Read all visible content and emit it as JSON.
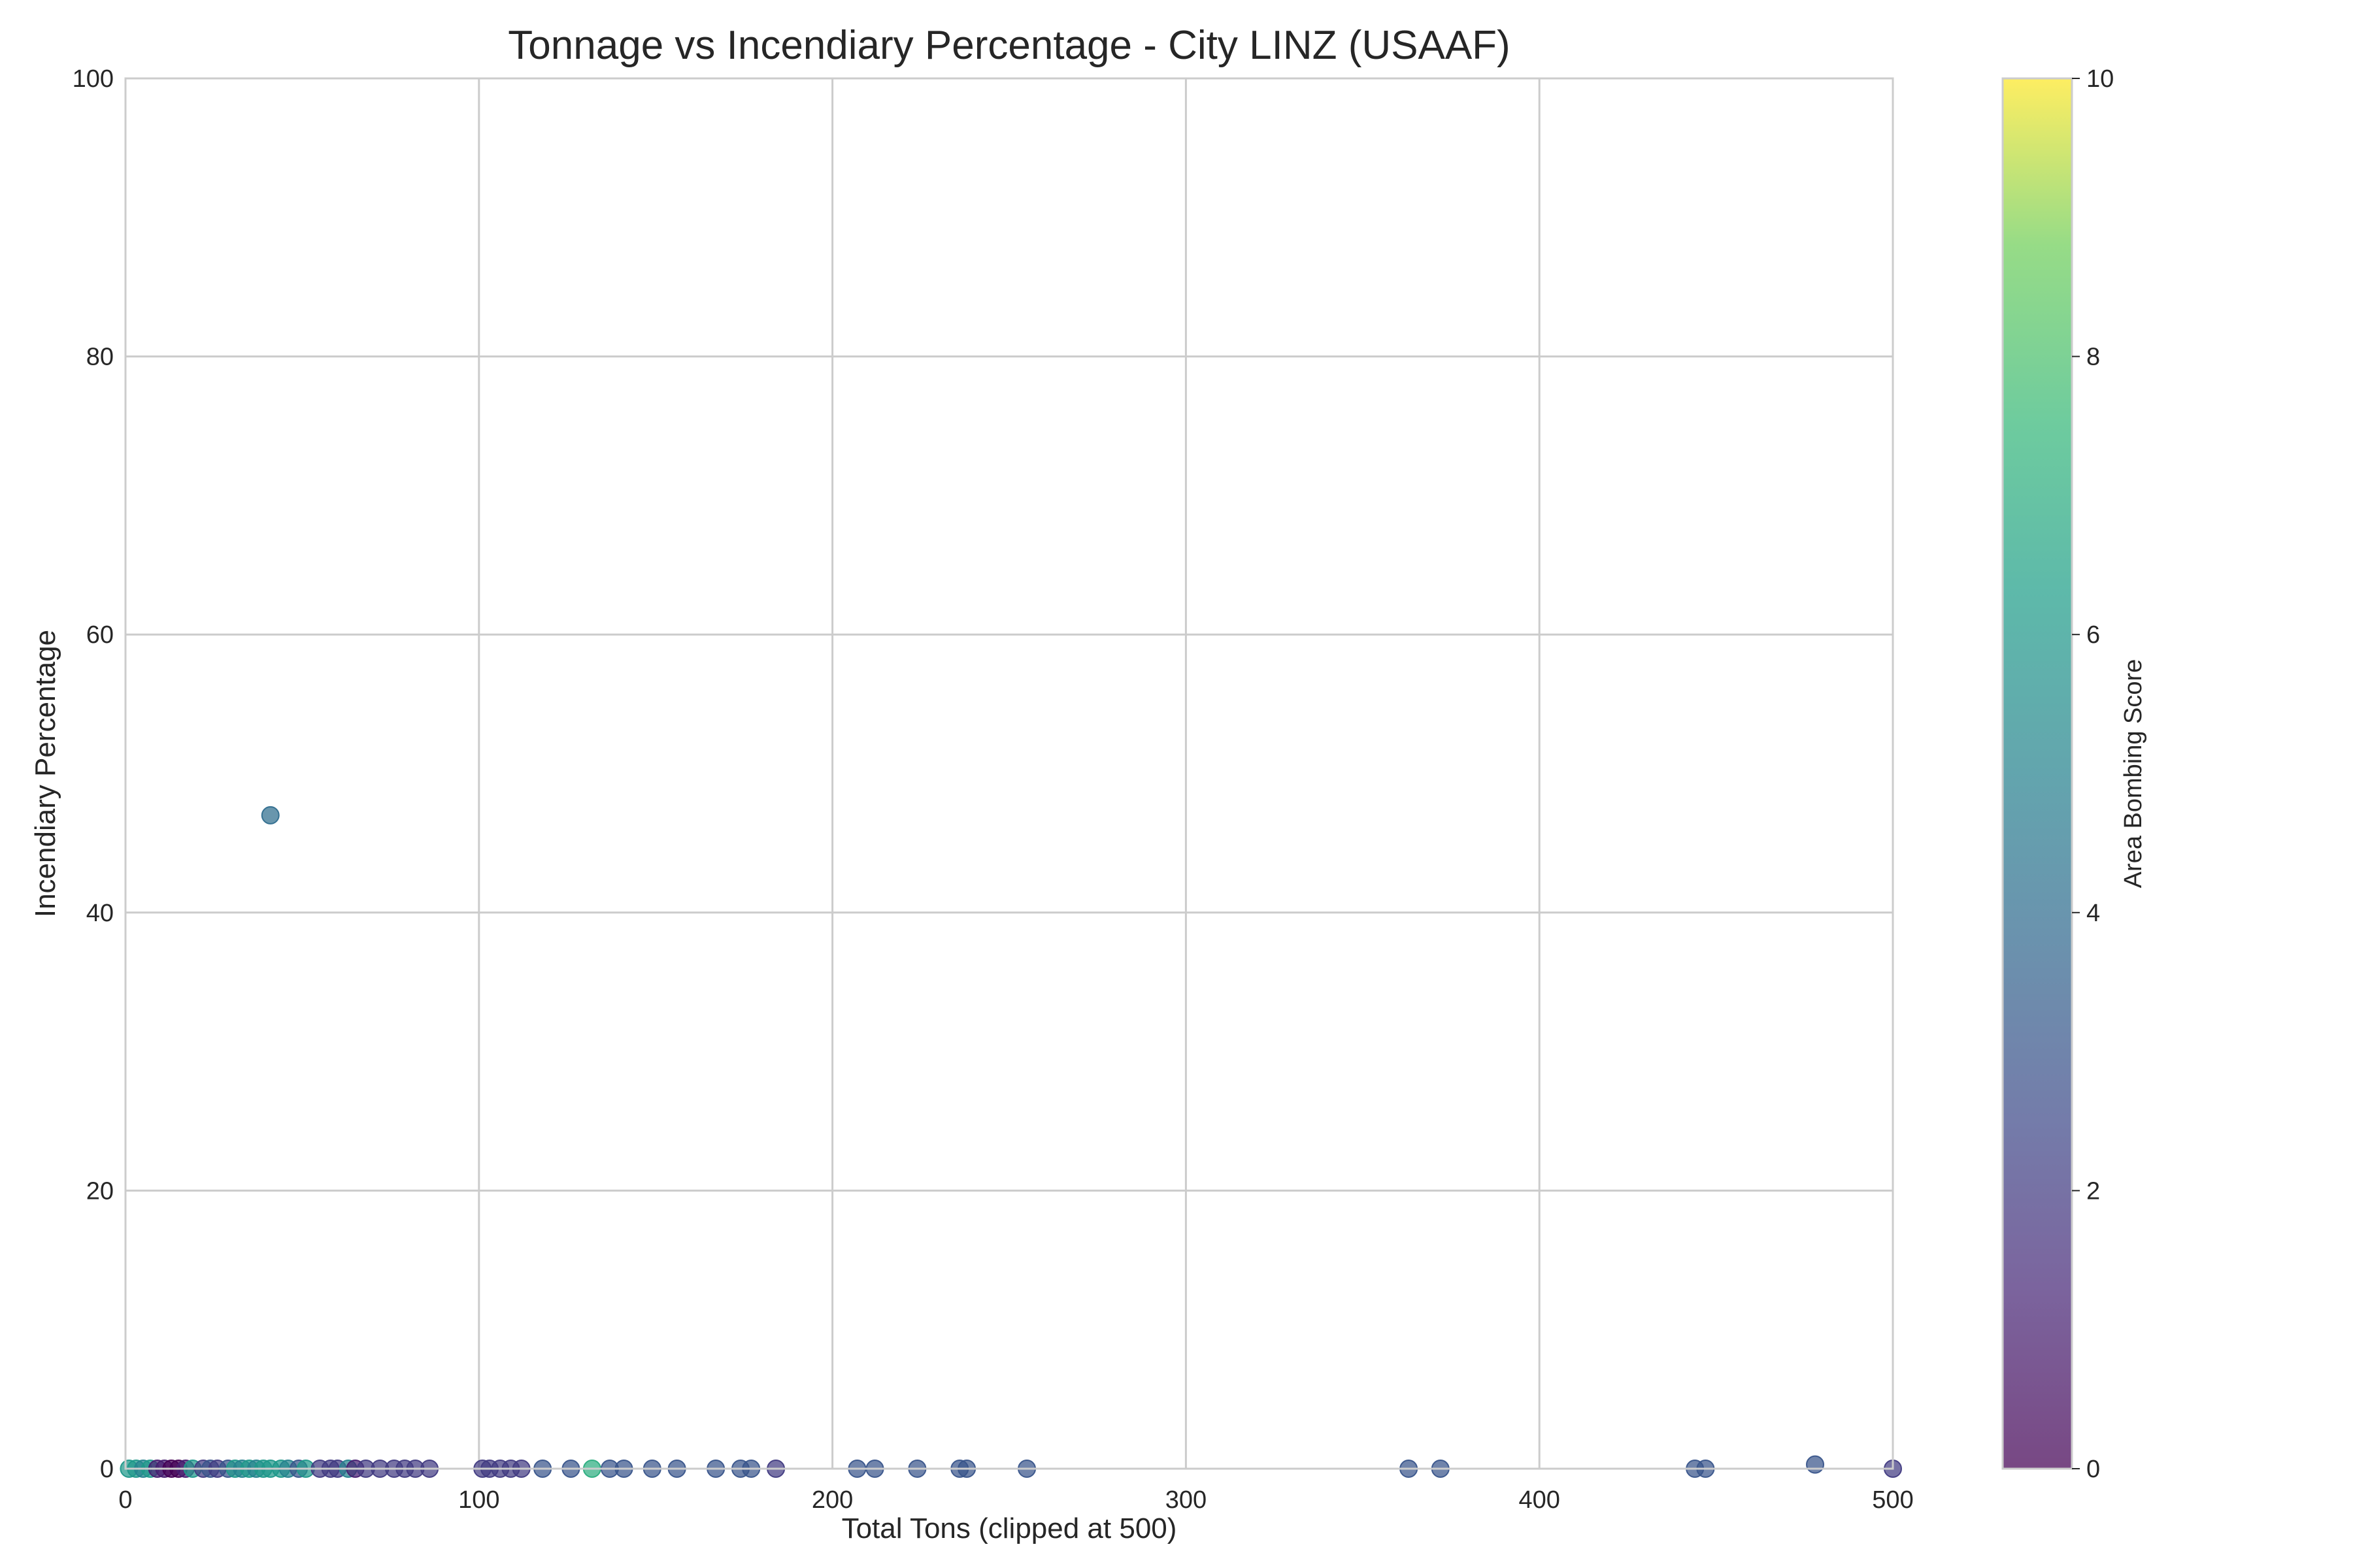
{
  "chart_data": {
    "type": "scatter",
    "title": "Tonnage vs Incendiary Percentage - City LINZ (USAAF)",
    "xlabel": "Total Tons (clipped at 500)",
    "ylabel": "Incendiary Percentage",
    "xlim": [
      0,
      500
    ],
    "ylim": [
      0,
      100
    ],
    "xticks": [
      0,
      100,
      200,
      300,
      400,
      500
    ],
    "yticks": [
      0,
      20,
      40,
      60,
      80,
      100
    ],
    "grid": true,
    "colorbar": {
      "label": "Area Bombing Score",
      "range": [
        0,
        10
      ],
      "ticks": [
        0,
        2,
        4,
        6,
        8,
        10
      ],
      "colormap": "viridis"
    },
    "points": [
      {
        "x": 1,
        "y": 0,
        "c": 6
      },
      {
        "x": 3,
        "y": 0,
        "c": 6
      },
      {
        "x": 5,
        "y": 0,
        "c": 5
      },
      {
        "x": 7,
        "y": 0,
        "c": 6
      },
      {
        "x": 9,
        "y": 0,
        "c": 1
      },
      {
        "x": 11,
        "y": 0,
        "c": 1
      },
      {
        "x": 13,
        "y": 0,
        "c": 0
      },
      {
        "x": 15,
        "y": 0,
        "c": 0
      },
      {
        "x": 17,
        "y": 0,
        "c": 1
      },
      {
        "x": 19,
        "y": 0,
        "c": 6
      },
      {
        "x": 22,
        "y": 0,
        "c": 2
      },
      {
        "x": 24,
        "y": 0,
        "c": 3
      },
      {
        "x": 26,
        "y": 0,
        "c": 2
      },
      {
        "x": 29,
        "y": 0,
        "c": 3
      },
      {
        "x": 31,
        "y": 0,
        "c": 6
      },
      {
        "x": 33,
        "y": 0,
        "c": 5
      },
      {
        "x": 35,
        "y": 0,
        "c": 6
      },
      {
        "x": 37,
        "y": 0,
        "c": 5
      },
      {
        "x": 39,
        "y": 0,
        "c": 6
      },
      {
        "x": 41,
        "y": 0,
        "c": 6
      },
      {
        "x": 44,
        "y": 0,
        "c": 6
      },
      {
        "x": 46,
        "y": 0,
        "c": 5
      },
      {
        "x": 49,
        "y": 0,
        "c": 3
      },
      {
        "x": 51,
        "y": 0,
        "c": 6
      },
      {
        "x": 55,
        "y": 0,
        "c": 2
      },
      {
        "x": 58,
        "y": 0,
        "c": 2
      },
      {
        "x": 60,
        "y": 0,
        "c": 2
      },
      {
        "x": 63,
        "y": 0,
        "c": 5
      },
      {
        "x": 65,
        "y": 0,
        "c": 1
      },
      {
        "x": 68,
        "y": 0,
        "c": 2
      },
      {
        "x": 72,
        "y": 0,
        "c": 2
      },
      {
        "x": 76,
        "y": 0,
        "c": 2
      },
      {
        "x": 79,
        "y": 0,
        "c": 2
      },
      {
        "x": 82,
        "y": 0,
        "c": 2
      },
      {
        "x": 86,
        "y": 0,
        "c": 2
      },
      {
        "x": 101,
        "y": 0,
        "c": 2
      },
      {
        "x": 103,
        "y": 0,
        "c": 2
      },
      {
        "x": 106,
        "y": 0,
        "c": 2
      },
      {
        "x": 109,
        "y": 0,
        "c": 2
      },
      {
        "x": 112,
        "y": 0,
        "c": 2
      },
      {
        "x": 118,
        "y": 0,
        "c": 3
      },
      {
        "x": 126,
        "y": 0,
        "c": 3
      },
      {
        "x": 132,
        "y": 0,
        "c": 7
      },
      {
        "x": 137,
        "y": 0,
        "c": 3
      },
      {
        "x": 141,
        "y": 0,
        "c": 3
      },
      {
        "x": 149,
        "y": 0,
        "c": 3
      },
      {
        "x": 156,
        "y": 0,
        "c": 3
      },
      {
        "x": 167,
        "y": 0,
        "c": 3
      },
      {
        "x": 174,
        "y": 0,
        "c": 3
      },
      {
        "x": 177,
        "y": 0,
        "c": 3
      },
      {
        "x": 184,
        "y": 0,
        "c": 2
      },
      {
        "x": 207,
        "y": 0,
        "c": 3
      },
      {
        "x": 212,
        "y": 0,
        "c": 3
      },
      {
        "x": 224,
        "y": 0,
        "c": 3
      },
      {
        "x": 236,
        "y": 0,
        "c": 3
      },
      {
        "x": 238,
        "y": 0,
        "c": 3
      },
      {
        "x": 255,
        "y": 0,
        "c": 3
      },
      {
        "x": 363,
        "y": 0,
        "c": 3
      },
      {
        "x": 372,
        "y": 0,
        "c": 3
      },
      {
        "x": 444,
        "y": 0,
        "c": 3
      },
      {
        "x": 447,
        "y": 0,
        "c": 3
      },
      {
        "x": 478,
        "y": 0.3,
        "c": 3
      },
      {
        "x": 500,
        "y": 0,
        "c": 2
      },
      {
        "x": 41,
        "y": 47,
        "c": 4
      }
    ]
  }
}
